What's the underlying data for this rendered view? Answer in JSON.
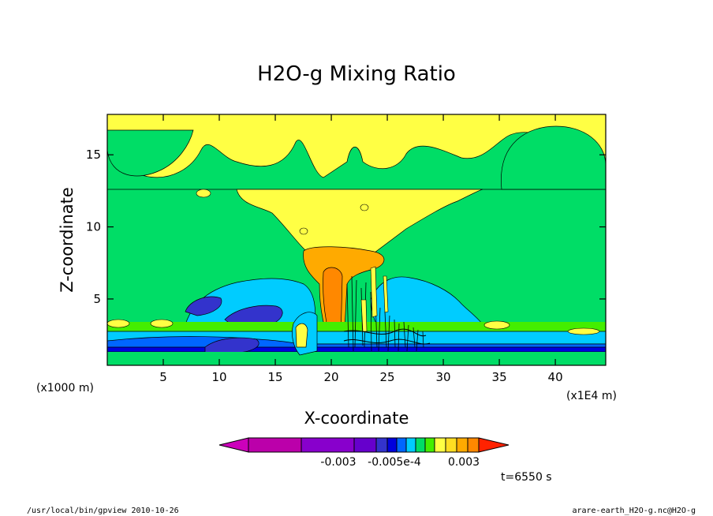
{
  "chart_data": {
    "type": "heatmap",
    "title": "H2O-g Mixing Ratio",
    "xlabel": "X-coordinate",
    "ylabel": "Z-coordinate",
    "x_unit_label": "(x1E4 m)",
    "y_unit_label": "(x1000 m)",
    "xlim": [
      0,
      44.5
    ],
    "ylim": [
      0.4,
      17.8
    ],
    "xticks": [
      5,
      10,
      15,
      20,
      25,
      30,
      35,
      40
    ],
    "yticks": [
      5,
      10,
      15
    ],
    "colorbar": {
      "colors": [
        "#cc00bb",
        "#bb00aa",
        "#8800cc",
        "#6600cc",
        "#3333cc",
        "#0000dd",
        "#0066ff",
        "#00ccff",
        "#00dd66",
        "#44ee00",
        "#ffff44",
        "#ffdd22",
        "#ffaa00",
        "#ff8800",
        "#ff2200"
      ],
      "tick_labels": [
        "-0.003",
        "-0.005e-4",
        "0.003"
      ]
    },
    "contour_fields": [
      {
        "name": "upper-background",
        "zmin": 12.6,
        "zmax": 17.8,
        "color": "#ffff44"
      },
      {
        "name": "middle-background",
        "zmin": 0.4,
        "zmax": 12.6,
        "color": "#00dd66"
      },
      {
        "name": "anvil-outflow",
        "center_x": 20.5,
        "zmin": 7.8,
        "zmax": 12.6,
        "color": "#ffff44"
      },
      {
        "name": "updraft-core",
        "center_x": 20.5,
        "zmin": 1.5,
        "zmax": 9.0,
        "color": "#ffaa00"
      },
      {
        "name": "moist-layer-left",
        "zmin": 0.4,
        "zmax": 6.2,
        "color": "#00ccff"
      },
      {
        "name": "dry-layer-left",
        "zmin": 1.0,
        "zmax": 5.0,
        "color": "#3333cc"
      },
      {
        "name": "surface-band",
        "zmin": 0.9,
        "zmax": 1.6,
        "color": "#0066ff"
      }
    ]
  },
  "annotations": {
    "time": "t=6550 s",
    "footer_left": "/usr/local/bin/gpview  2010-10-26",
    "footer_right": "arare-earth_H2O-g.nc@H2O-g"
  }
}
